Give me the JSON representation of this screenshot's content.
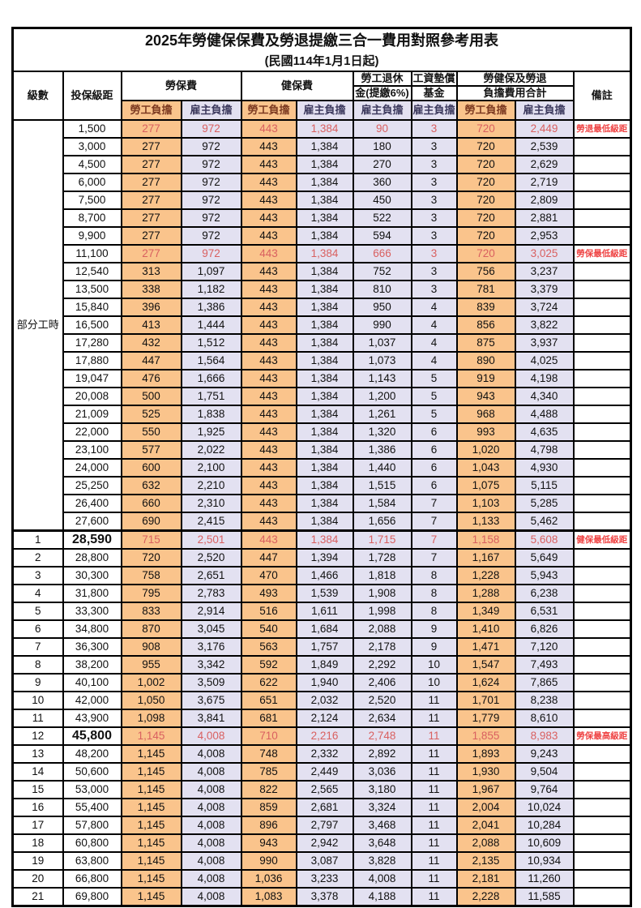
{
  "title": {
    "main": "2025年勞健保保費及勞退提繳三合一費用對照參考用表",
    "sub": "(民國114年1月1日起)"
  },
  "header": {
    "level": "級數",
    "bracket": "投保級距",
    "labor_ins": "勞保費",
    "health_ins": "健保費",
    "pension_line1": "勞工退休",
    "pension_line2": "金(提繳6%)",
    "wage_fund_line1": "工資墊償",
    "wage_fund_line2": "基金",
    "total_line1": "勞健保及勞退",
    "total_line2": "負擔費用合計",
    "note": "備註",
    "employee": "勞工負擔",
    "employer": "雇主負擔"
  },
  "group": {
    "label": "部分工時",
    "rowspan": 23
  },
  "colors": {
    "employee_bg": "#FAC48C",
    "employer_bg": "#E3E1F1",
    "red_value": "#D96060",
    "red_note": "#EF4343",
    "employee_header_text": "#7C3A21",
    "employer_header_text": "#3D3A5E",
    "border": "#000000"
  },
  "rows": [
    {
      "level": "",
      "bracket": "1,500",
      "v": [
        "277",
        "972",
        "443",
        "1,384",
        "90",
        "3",
        "720",
        "2,449"
      ],
      "note": "勞退最低級距",
      "red": true,
      "big": false
    },
    {
      "level": "",
      "bracket": "3,000",
      "v": [
        "277",
        "972",
        "443",
        "1,384",
        "180",
        "3",
        "720",
        "2,539"
      ],
      "note": "",
      "red": false,
      "big": false
    },
    {
      "level": "",
      "bracket": "4,500",
      "v": [
        "277",
        "972",
        "443",
        "1,384",
        "270",
        "3",
        "720",
        "2,629"
      ],
      "note": "",
      "red": false,
      "big": false
    },
    {
      "level": "",
      "bracket": "6,000",
      "v": [
        "277",
        "972",
        "443",
        "1,384",
        "360",
        "3",
        "720",
        "2,719"
      ],
      "note": "",
      "red": false,
      "big": false
    },
    {
      "level": "",
      "bracket": "7,500",
      "v": [
        "277",
        "972",
        "443",
        "1,384",
        "450",
        "3",
        "720",
        "2,809"
      ],
      "note": "",
      "red": false,
      "big": false
    },
    {
      "level": "",
      "bracket": "8,700",
      "v": [
        "277",
        "972",
        "443",
        "1,384",
        "522",
        "3",
        "720",
        "2,881"
      ],
      "note": "",
      "red": false,
      "big": false
    },
    {
      "level": "",
      "bracket": "9,900",
      "v": [
        "277",
        "972",
        "443",
        "1,384",
        "594",
        "3",
        "720",
        "2,953"
      ],
      "note": "",
      "red": false,
      "big": false
    },
    {
      "level": "",
      "bracket": "11,100",
      "v": [
        "277",
        "972",
        "443",
        "1,384",
        "666",
        "3",
        "720",
        "3,025"
      ],
      "note": "勞保最低級距",
      "red": true,
      "big": false
    },
    {
      "level": "",
      "bracket": "12,540",
      "v": [
        "313",
        "1,097",
        "443",
        "1,384",
        "752",
        "3",
        "756",
        "3,237"
      ],
      "note": "",
      "red": false,
      "big": false
    },
    {
      "level": "",
      "bracket": "13,500",
      "v": [
        "338",
        "1,182",
        "443",
        "1,384",
        "810",
        "3",
        "781",
        "3,379"
      ],
      "note": "",
      "red": false,
      "big": false
    },
    {
      "level": "",
      "bracket": "15,840",
      "v": [
        "396",
        "1,386",
        "443",
        "1,384",
        "950",
        "4",
        "839",
        "3,724"
      ],
      "note": "",
      "red": false,
      "big": false
    },
    {
      "level": "",
      "bracket": "16,500",
      "v": [
        "413",
        "1,444",
        "443",
        "1,384",
        "990",
        "4",
        "856",
        "3,822"
      ],
      "note": "",
      "red": false,
      "big": false
    },
    {
      "level": "",
      "bracket": "17,280",
      "v": [
        "432",
        "1,512",
        "443",
        "1,384",
        "1,037",
        "4",
        "875",
        "3,937"
      ],
      "note": "",
      "red": false,
      "big": false
    },
    {
      "level": "",
      "bracket": "17,880",
      "v": [
        "447",
        "1,564",
        "443",
        "1,384",
        "1,073",
        "4",
        "890",
        "4,025"
      ],
      "note": "",
      "red": false,
      "big": false
    },
    {
      "level": "",
      "bracket": "19,047",
      "v": [
        "476",
        "1,666",
        "443",
        "1,384",
        "1,143",
        "5",
        "919",
        "4,198"
      ],
      "note": "",
      "red": false,
      "big": false
    },
    {
      "level": "",
      "bracket": "20,008",
      "v": [
        "500",
        "1,751",
        "443",
        "1,384",
        "1,200",
        "5",
        "943",
        "4,340"
      ],
      "note": "",
      "red": false,
      "big": false
    },
    {
      "level": "",
      "bracket": "21,009",
      "v": [
        "525",
        "1,838",
        "443",
        "1,384",
        "1,261",
        "5",
        "968",
        "4,488"
      ],
      "note": "",
      "red": false,
      "big": false
    },
    {
      "level": "",
      "bracket": "22,000",
      "v": [
        "550",
        "1,925",
        "443",
        "1,384",
        "1,320",
        "6",
        "993",
        "4,635"
      ],
      "note": "",
      "red": false,
      "big": false
    },
    {
      "level": "",
      "bracket": "23,100",
      "v": [
        "577",
        "2,022",
        "443",
        "1,384",
        "1,386",
        "6",
        "1,020",
        "4,798"
      ],
      "note": "",
      "red": false,
      "big": false
    },
    {
      "level": "",
      "bracket": "24,000",
      "v": [
        "600",
        "2,100",
        "443",
        "1,384",
        "1,440",
        "6",
        "1,043",
        "4,930"
      ],
      "note": "",
      "red": false,
      "big": false
    },
    {
      "level": "",
      "bracket": "25,250",
      "v": [
        "632",
        "2,210",
        "443",
        "1,384",
        "1,515",
        "6",
        "1,075",
        "5,115"
      ],
      "note": "",
      "red": false,
      "big": false
    },
    {
      "level": "",
      "bracket": "26,400",
      "v": [
        "660",
        "2,310",
        "443",
        "1,384",
        "1,584",
        "7",
        "1,103",
        "5,285"
      ],
      "note": "",
      "red": false,
      "big": false
    },
    {
      "level": "",
      "bracket": "27,600",
      "v": [
        "690",
        "2,415",
        "443",
        "1,384",
        "1,656",
        "7",
        "1,133",
        "5,462"
      ],
      "note": "",
      "red": false,
      "big": false
    },
    {
      "level": "1",
      "bracket": "28,590",
      "v": [
        "715",
        "2,501",
        "443",
        "1,384",
        "1,715",
        "7",
        "1,158",
        "5,608"
      ],
      "note": "健保最低級距",
      "red": true,
      "big": true,
      "section": true
    },
    {
      "level": "2",
      "bracket": "28,800",
      "v": [
        "720",
        "2,520",
        "447",
        "1,394",
        "1,728",
        "7",
        "1,167",
        "5,649"
      ],
      "note": "",
      "red": false,
      "big": false
    },
    {
      "level": "3",
      "bracket": "30,300",
      "v": [
        "758",
        "2,651",
        "470",
        "1,466",
        "1,818",
        "8",
        "1,228",
        "5,943"
      ],
      "note": "",
      "red": false,
      "big": false
    },
    {
      "level": "4",
      "bracket": "31,800",
      "v": [
        "795",
        "2,783",
        "493",
        "1,539",
        "1,908",
        "8",
        "1,288",
        "6,238"
      ],
      "note": "",
      "red": false,
      "big": false
    },
    {
      "level": "5",
      "bracket": "33,300",
      "v": [
        "833",
        "2,914",
        "516",
        "1,611",
        "1,998",
        "8",
        "1,349",
        "6,531"
      ],
      "note": "",
      "red": false,
      "big": false
    },
    {
      "level": "6",
      "bracket": "34,800",
      "v": [
        "870",
        "3,045",
        "540",
        "1,684",
        "2,088",
        "9",
        "1,410",
        "6,826"
      ],
      "note": "",
      "red": false,
      "big": false
    },
    {
      "level": "7",
      "bracket": "36,300",
      "v": [
        "908",
        "3,176",
        "563",
        "1,757",
        "2,178",
        "9",
        "1,471",
        "7,120"
      ],
      "note": "",
      "red": false,
      "big": false
    },
    {
      "level": "8",
      "bracket": "38,200",
      "v": [
        "955",
        "3,342",
        "592",
        "1,849",
        "2,292",
        "10",
        "1,547",
        "7,493"
      ],
      "note": "",
      "red": false,
      "big": false
    },
    {
      "level": "9",
      "bracket": "40,100",
      "v": [
        "1,002",
        "3,509",
        "622",
        "1,940",
        "2,406",
        "10",
        "1,624",
        "7,865"
      ],
      "note": "",
      "red": false,
      "big": false
    },
    {
      "level": "10",
      "bracket": "42,000",
      "v": [
        "1,050",
        "3,675",
        "651",
        "2,032",
        "2,520",
        "11",
        "1,701",
        "8,238"
      ],
      "note": "",
      "red": false,
      "big": false
    },
    {
      "level": "11",
      "bracket": "43,900",
      "v": [
        "1,098",
        "3,841",
        "681",
        "2,124",
        "2,634",
        "11",
        "1,779",
        "8,610"
      ],
      "note": "",
      "red": false,
      "big": false
    },
    {
      "level": "12",
      "bracket": "45,800",
      "v": [
        "1,145",
        "4,008",
        "710",
        "2,216",
        "2,748",
        "11",
        "1,855",
        "8,983"
      ],
      "note": "勞保最高級距",
      "red": true,
      "big": true
    },
    {
      "level": "13",
      "bracket": "48,200",
      "v": [
        "1,145",
        "4,008",
        "748",
        "2,332",
        "2,892",
        "11",
        "1,893",
        "9,243"
      ],
      "note": "",
      "red": false,
      "big": false
    },
    {
      "level": "14",
      "bracket": "50,600",
      "v": [
        "1,145",
        "4,008",
        "785",
        "2,449",
        "3,036",
        "11",
        "1,930",
        "9,504"
      ],
      "note": "",
      "red": false,
      "big": false
    },
    {
      "level": "15",
      "bracket": "53,000",
      "v": [
        "1,145",
        "4,008",
        "822",
        "2,565",
        "3,180",
        "11",
        "1,967",
        "9,764"
      ],
      "note": "",
      "red": false,
      "big": false
    },
    {
      "level": "16",
      "bracket": "55,400",
      "v": [
        "1,145",
        "4,008",
        "859",
        "2,681",
        "3,324",
        "11",
        "2,004",
        "10,024"
      ],
      "note": "",
      "red": false,
      "big": false
    },
    {
      "level": "17",
      "bracket": "57,800",
      "v": [
        "1,145",
        "4,008",
        "896",
        "2,797",
        "3,468",
        "11",
        "2,041",
        "10,284"
      ],
      "note": "",
      "red": false,
      "big": false
    },
    {
      "level": "18",
      "bracket": "60,800",
      "v": [
        "1,145",
        "4,008",
        "943",
        "2,942",
        "3,648",
        "11",
        "2,088",
        "10,609"
      ],
      "note": "",
      "red": false,
      "big": false
    },
    {
      "level": "19",
      "bracket": "63,800",
      "v": [
        "1,145",
        "4,008",
        "990",
        "3,087",
        "3,828",
        "11",
        "2,135",
        "10,934"
      ],
      "note": "",
      "red": false,
      "big": false
    },
    {
      "level": "20",
      "bracket": "66,800",
      "v": [
        "1,145",
        "4,008",
        "1,036",
        "3,233",
        "4,008",
        "11",
        "2,181",
        "11,260"
      ],
      "note": "",
      "red": false,
      "big": false
    },
    {
      "level": "21",
      "bracket": "69,800",
      "v": [
        "1,145",
        "4,008",
        "1,083",
        "3,378",
        "4,188",
        "11",
        "2,228",
        "11,585"
      ],
      "note": "",
      "red": false,
      "big": false
    }
  ]
}
